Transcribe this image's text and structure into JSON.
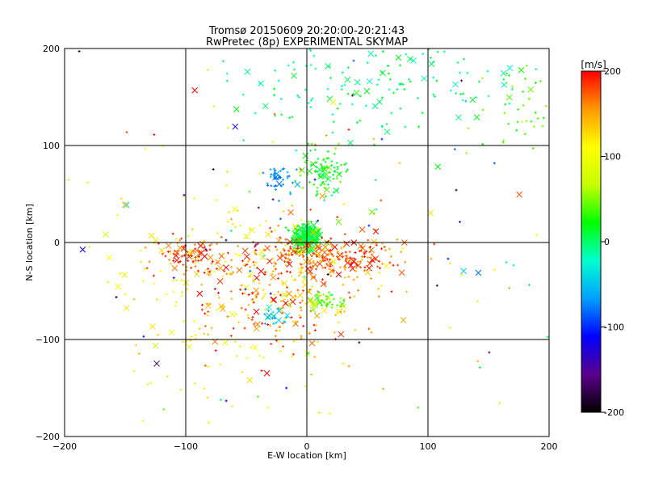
{
  "chart_data": {
    "type": "scatter",
    "title": "Tromsø 20150609 20:20:00-20:21:43",
    "subtitle": "RwPretec (8p) EXPERIMENTAL SKYMAP",
    "xlabel": "E-W location [km]",
    "ylabel": "N-S location [km]",
    "xlim": [
      -200,
      200
    ],
    "ylim": [
      -200,
      200
    ],
    "xticks": [
      -200,
      -100,
      0,
      100,
      200
    ],
    "yticks": [
      -200,
      -100,
      0,
      100,
      200
    ],
    "grid": true,
    "colorbar": {
      "label": "[m/s]",
      "min": -200,
      "max": 200,
      "ticks": [
        200,
        100,
        0,
        -100,
        -200
      ],
      "colormap": [
        "#000000",
        "#5a008c",
        "#0000ff",
        "#00a0ff",
        "#00ffd0",
        "#00ff00",
        "#c8ff00",
        "#ffff00",
        "#ff9900",
        "#ff0000"
      ]
    },
    "markers": {
      "small": "meteor echoes (small plus)",
      "large": "meteor echoes (cross)"
    },
    "clusters": [
      {
        "cx": 0,
        "cy": 5,
        "sx": 6,
        "sy": 7,
        "n": 260,
        "vmin": -10,
        "vmax": 40
      },
      {
        "cx": 15,
        "cy": -15,
        "sx": 30,
        "sy": 10,
        "n": 220,
        "vmin": 140,
        "vmax": 210
      },
      {
        "cx": -95,
        "cy": -15,
        "sx": 15,
        "sy": 10,
        "n": 80,
        "vmin": 150,
        "vmax": 210
      },
      {
        "cx": 15,
        "cy": 75,
        "sx": 10,
        "sy": 12,
        "n": 90,
        "vmin": 0,
        "vmax": 50
      },
      {
        "cx": -25,
        "cy": 65,
        "sx": 8,
        "sy": 8,
        "n": 40,
        "vmin": -90,
        "vmax": -50
      },
      {
        "cx": 70,
        "cy": 165,
        "sx": 60,
        "sy": 25,
        "n": 150,
        "vmin": -30,
        "vmax": 20
      },
      {
        "cx": 180,
        "cy": 145,
        "sx": 15,
        "sy": 25,
        "n": 40,
        "vmin": 20,
        "vmax": 60
      },
      {
        "cx": -20,
        "cy": -50,
        "sx": 40,
        "sy": 35,
        "n": 260,
        "vmin": 120,
        "vmax": 210
      },
      {
        "cx": -70,
        "cy": -40,
        "sx": 55,
        "sy": 55,
        "n": 160,
        "vmin": 80,
        "vmax": 130
      },
      {
        "cx": 15,
        "cy": -60,
        "sx": 8,
        "sy": 5,
        "n": 40,
        "vmin": 30,
        "vmax": 60
      },
      {
        "cx": -25,
        "cy": -75,
        "sx": 6,
        "sy": 6,
        "n": 20,
        "vmin": -60,
        "vmax": -30
      },
      {
        "cx": 0,
        "cy": 20,
        "sx": 120,
        "sy": 120,
        "n": 160,
        "vmin": -200,
        "vmax": 200
      }
    ]
  }
}
